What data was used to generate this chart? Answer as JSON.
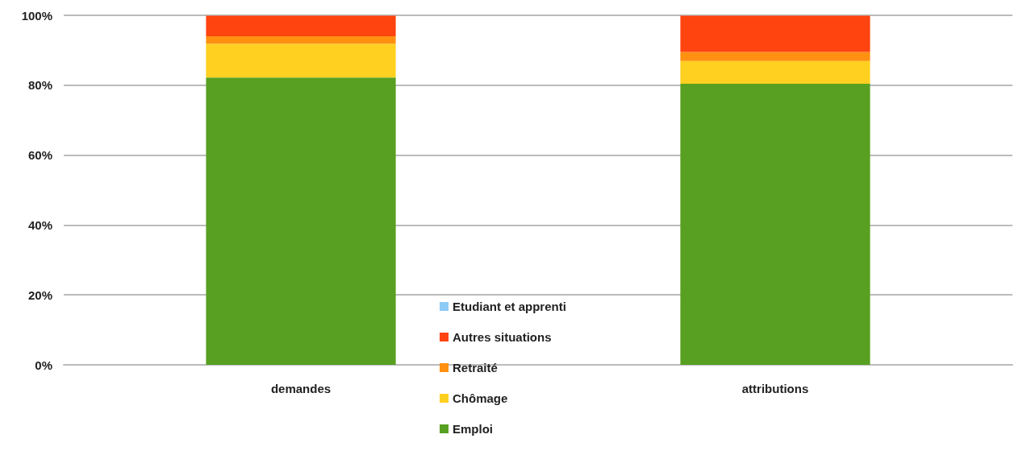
{
  "chart_data": {
    "type": "bar",
    "stacked": true,
    "categories": [
      "demandes",
      "attributions"
    ],
    "series": [
      {
        "name": "Emploi",
        "color": "#58a021",
        "values": [
          82.2,
          80.4
        ]
      },
      {
        "name": "Chômage",
        "color": "#ffd020",
        "values": [
          9.7,
          6.5
        ]
      },
      {
        "name": "Retraité",
        "color": "#ff9010",
        "values": [
          2.1,
          2.6
        ]
      },
      {
        "name": "Autres situations",
        "color": "#ff4410",
        "values": [
          5.9,
          10.4
        ]
      },
      {
        "name": "Etudiant et apprenti",
        "color": "#8ccbf6",
        "values": [
          null,
          null
        ]
      }
    ],
    "ylim": [
      0,
      100
    ],
    "yticks": [
      {
        "value": 0,
        "label": "0%"
      },
      {
        "value": 20,
        "label": "20%"
      },
      {
        "value": 40,
        "label": "40%"
      },
      {
        "value": 60,
        "label": "60%"
      },
      {
        "value": 80,
        "label": "80%"
      },
      {
        "value": 100,
        "label": "100%"
      }
    ],
    "grid": "y",
    "legend": "bottom"
  }
}
